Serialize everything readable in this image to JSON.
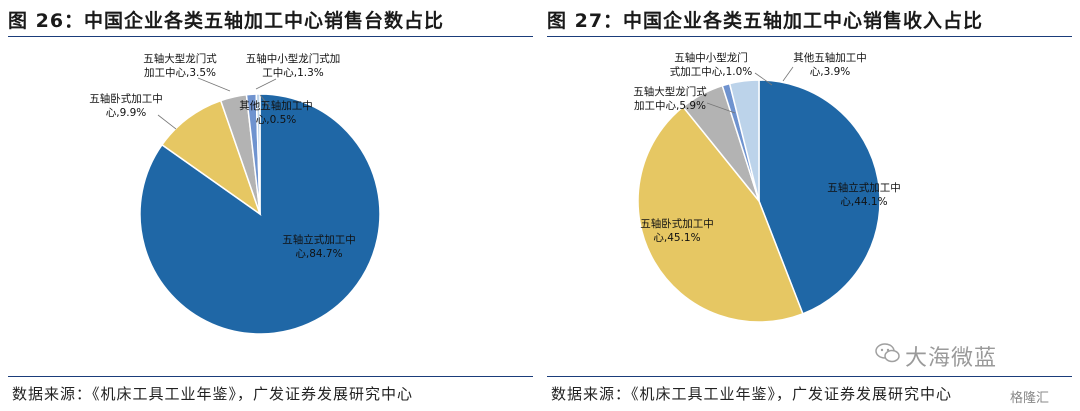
{
  "left": {
    "title": "图 26：中国企业各类五轴加工中心销售台数占比",
    "source": "数据来源：《机床工具工业年鉴》，广发证券发展研究中心"
  },
  "right": {
    "title": "图 27：中国企业各类五轴加工中心销售收入占比",
    "source": "数据来源：《机床工具工业年鉴》，广发证券发展研究中心"
  },
  "watermark": "大海微蓝",
  "brand_badge": "格隆汇",
  "colors": {
    "dark_blue": "#1f67a6",
    "yellow": "#e6c763",
    "gray": "#b3b3b3",
    "mid_blue": "#6f93cf",
    "light_blue": "#bcd3ea"
  },
  "chart_data": [
    {
      "type": "pie",
      "title": "图 26：中国企业各类五轴加工中心销售台数占比",
      "slices": [
        {
          "label": "五轴立式加工中心",
          "value": 84.7,
          "color": "#1f67a6",
          "label_lines": [
            "五轴立式加工中",
            "心,84.7%"
          ]
        },
        {
          "label": "五轴卧式加工中心",
          "value": 9.9,
          "color": "#e6c763",
          "label_lines": [
            "五轴卧式加工中",
            "心,9.9%"
          ]
        },
        {
          "label": "五轴大型龙门式加工中心",
          "value": 3.5,
          "color": "#b3b3b3",
          "label_lines": [
            "五轴大型龙门式",
            "加工中心,3.5%"
          ]
        },
        {
          "label": "五轴中小型龙门式加工中心",
          "value": 1.3,
          "color": "#6f93cf",
          "label_lines": [
            "五轴中小型龙门式加",
            "工中心,1.3%"
          ]
        },
        {
          "label": "其他五轴加工中心",
          "value": 0.5,
          "color": "#bcd3ea",
          "label_lines": [
            "其他五轴加工中",
            "心,0.5%"
          ]
        }
      ]
    },
    {
      "type": "pie",
      "title": "图 27：中国企业各类五轴加工中心销售收入占比",
      "slices": [
        {
          "label": "五轴立式加工中心",
          "value": 44.1,
          "color": "#1f67a6",
          "label_lines": [
            "五轴立式加工中",
            "心,44.1%"
          ]
        },
        {
          "label": "五轴卧式加工中心",
          "value": 45.1,
          "color": "#e6c763",
          "label_lines": [
            "五轴卧式加工中",
            "心,45.1%"
          ]
        },
        {
          "label": "五轴大型龙门式加工中心",
          "value": 5.9,
          "color": "#b3b3b3",
          "label_lines": [
            "五轴大型龙门式",
            "加工中心,5.9%"
          ]
        },
        {
          "label": "五轴中小型龙门式加工中心",
          "value": 1.0,
          "color": "#6f93cf",
          "label_lines": [
            "五轴中小型龙门",
            "式加工中心,1.0%"
          ]
        },
        {
          "label": "其他五轴加工中心",
          "value": 3.9,
          "color": "#bcd3ea",
          "label_lines": [
            "其他五轴加工中",
            "心,3.9%"
          ]
        }
      ]
    }
  ]
}
